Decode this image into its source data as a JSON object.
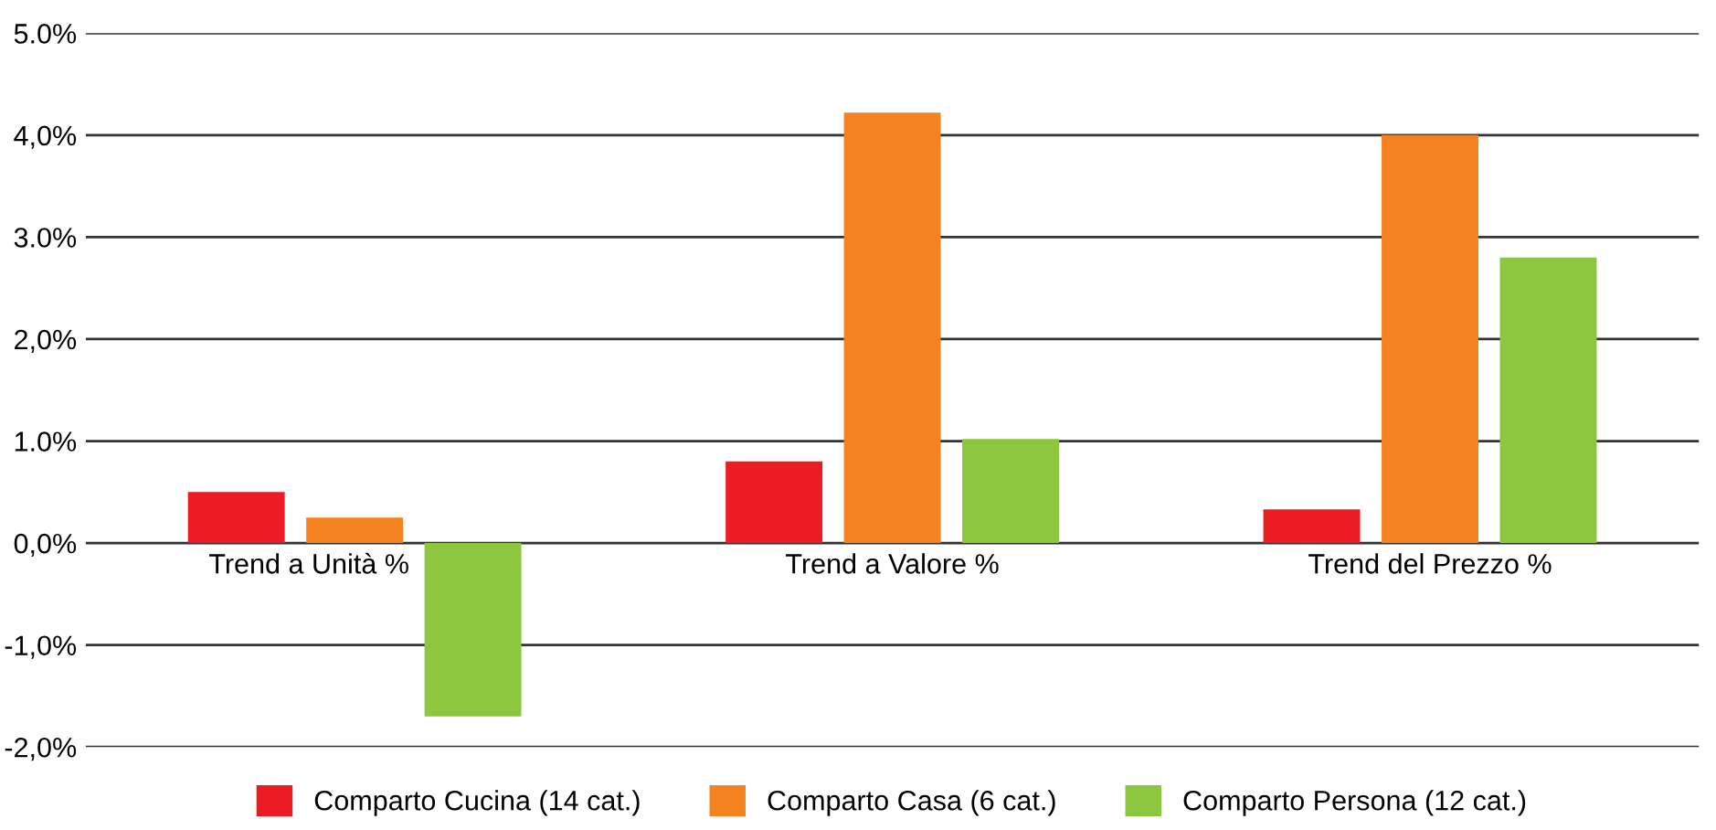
{
  "chart_data": {
    "type": "bar",
    "categories": [
      "Trend a Unità %",
      "Trend a Valore %",
      "Trend del Prezzo %"
    ],
    "series": [
      {
        "name": "Comparto Cucina (14 cat.)",
        "color": "#ed1c24",
        "values": [
          0.5,
          0.8,
          0.33
        ]
      },
      {
        "name": "Comparto Casa (6 cat.)",
        "color": "#f58220",
        "values": [
          0.25,
          4.22,
          4.0
        ]
      },
      {
        "name": "Comparto Persona (12 cat.)",
        "color": "#8dc63f",
        "values": [
          -1.7,
          1.02,
          2.8
        ]
      }
    ],
    "ylim": [
      -2,
      5
    ],
    "yticks": [
      {
        "value": -2,
        "label": "-2,0%"
      },
      {
        "value": -1,
        "label": "-1,0%"
      },
      {
        "value": 0,
        "label": "0,0%"
      },
      {
        "value": 1,
        "label": "1.0%"
      },
      {
        "value": 2,
        "label": "2,0%"
      },
      {
        "value": 3,
        "label": "3.0%"
      },
      {
        "value": 4,
        "label": "4,0%"
      },
      {
        "value": 5,
        "label": "5.0%"
      }
    ],
    "grid": "y",
    "legend": "bottom"
  }
}
